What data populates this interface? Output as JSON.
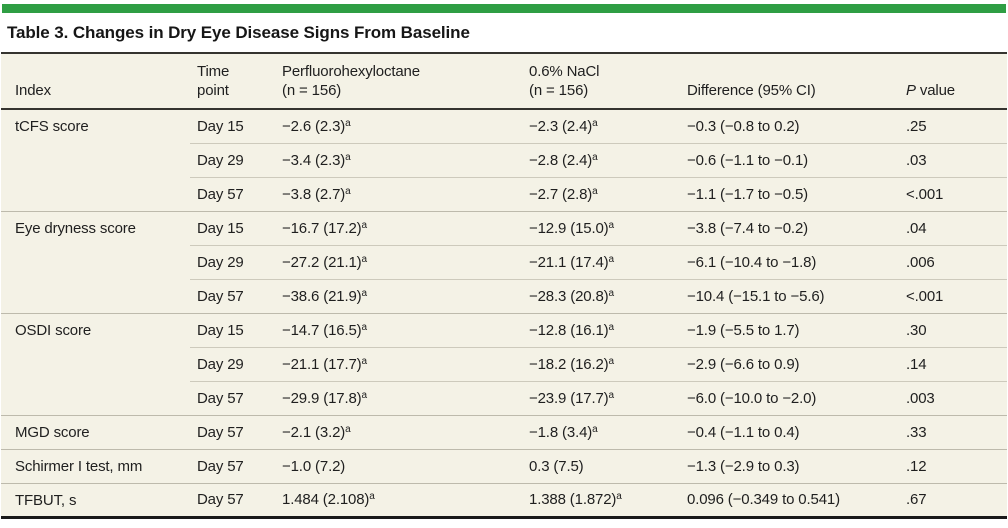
{
  "colors": {
    "accent_green": "#2f9e44",
    "table_background": "#f4f2e6",
    "text": "#1f1f1f",
    "rule_dark": "#35342f",
    "rule_light": "#cdcabc"
  },
  "table": {
    "title": "Table 3. Changes in Dry Eye Disease Signs From Baseline",
    "footnote_marker": "a",
    "headers": [
      {
        "id": "index",
        "lines": [
          [
            {
              "text": "Index"
            }
          ]
        ]
      },
      {
        "id": "time-point",
        "lines": [
          [
            {
              "text": "Time"
            }
          ],
          [
            {
              "text": "point"
            }
          ]
        ]
      },
      {
        "id": "pfh",
        "lines": [
          [
            {
              "text": "Perfluorohexyloctane"
            }
          ],
          [
            {
              "text": "(n = 156)"
            }
          ]
        ]
      },
      {
        "id": "nacl",
        "lines": [
          [
            {
              "text": "0.6% NaCl"
            }
          ],
          [
            {
              "text": "(n = 156)"
            }
          ]
        ]
      },
      {
        "id": "difference",
        "lines": [
          [
            {
              "text": "Difference (95% CI)"
            }
          ]
        ]
      },
      {
        "id": "p-value",
        "lines": [
          [
            {
              "text": "P",
              "italic": true
            },
            {
              "text": " value"
            }
          ]
        ]
      }
    ],
    "groups": [
      {
        "index": "tCFS score",
        "rows": [
          {
            "time_point": "Day 15",
            "pfh": "−2.6 (2.3)^a",
            "nacl": "−2.3 (2.4)^a",
            "difference": "−0.3 (−0.8 to 0.2)",
            "p_value": ".25"
          },
          {
            "time_point": "Day 29",
            "pfh": "−3.4 (2.3)^a",
            "nacl": "−2.8 (2.4)^a",
            "difference": "−0.6 (−1.1 to −0.1)",
            "p_value": ".03"
          },
          {
            "time_point": "Day 57",
            "pfh": "−3.8 (2.7)^a",
            "nacl": "−2.7 (2.8)^a",
            "difference": "−1.1 (−1.7 to −0.5)",
            "p_value": "<.001"
          }
        ]
      },
      {
        "index": "Eye dryness score",
        "rows": [
          {
            "time_point": "Day 15",
            "pfh": "−16.7 (17.2)^a",
            "nacl": "−12.9 (15.0)^a",
            "difference": "−3.8 (−7.4 to −0.2)",
            "p_value": ".04"
          },
          {
            "time_point": "Day 29",
            "pfh": "−27.2 (21.1)^a",
            "nacl": "−21.1 (17.4)^a",
            "difference": "−6.1 (−10.4 to −1.8)",
            "p_value": ".006"
          },
          {
            "time_point": "Day 57",
            "pfh": "−38.6 (21.9)^a",
            "nacl": "−28.3 (20.8)^a",
            "difference": "−10.4 (−15.1 to −5.6)",
            "p_value": "<.001"
          }
        ]
      },
      {
        "index": "OSDI score",
        "rows": [
          {
            "time_point": "Day 15",
            "pfh": "−14.7 (16.5)^a",
            "nacl": "−12.8 (16.1)^a",
            "difference": "−1.9 (−5.5 to 1.7)",
            "p_value": ".30"
          },
          {
            "time_point": "Day 29",
            "pfh": "−21.1 (17.7)^a",
            "nacl": "−18.2 (16.2)^a",
            "difference": "−2.9 (−6.6 to 0.9)",
            "p_value": ".14"
          },
          {
            "time_point": "Day 57",
            "pfh": "−29.9 (17.8)^a",
            "nacl": "−23.9 (17.7)^a",
            "difference": "−6.0 (−10.0 to −2.0)",
            "p_value": ".003"
          }
        ]
      },
      {
        "index": "MGD score",
        "rows": [
          {
            "time_point": "Day 57",
            "pfh": "−2.1 (3.2)^a",
            "nacl": "−1.8 (3.4)^a",
            "difference": "−0.4 (−1.1 to 0.4)",
            "p_value": ".33"
          }
        ]
      },
      {
        "index": "Schirmer I test, mm",
        "rows": [
          {
            "time_point": "Day 57",
            "pfh": "−1.0 (7.2)",
            "nacl": "0.3 (7.5)",
            "difference": "−1.3 (−2.9 to 0.3)",
            "p_value": ".12"
          }
        ]
      },
      {
        "index": "TFBUT, s",
        "rows": [
          {
            "time_point": "Day 57",
            "pfh": "1.484 (2.108)^a",
            "nacl": "1.388 (1.872)^a",
            "difference": "0.096 (−0.349 to 0.541)",
            "p_value": ".67"
          }
        ]
      }
    ]
  }
}
